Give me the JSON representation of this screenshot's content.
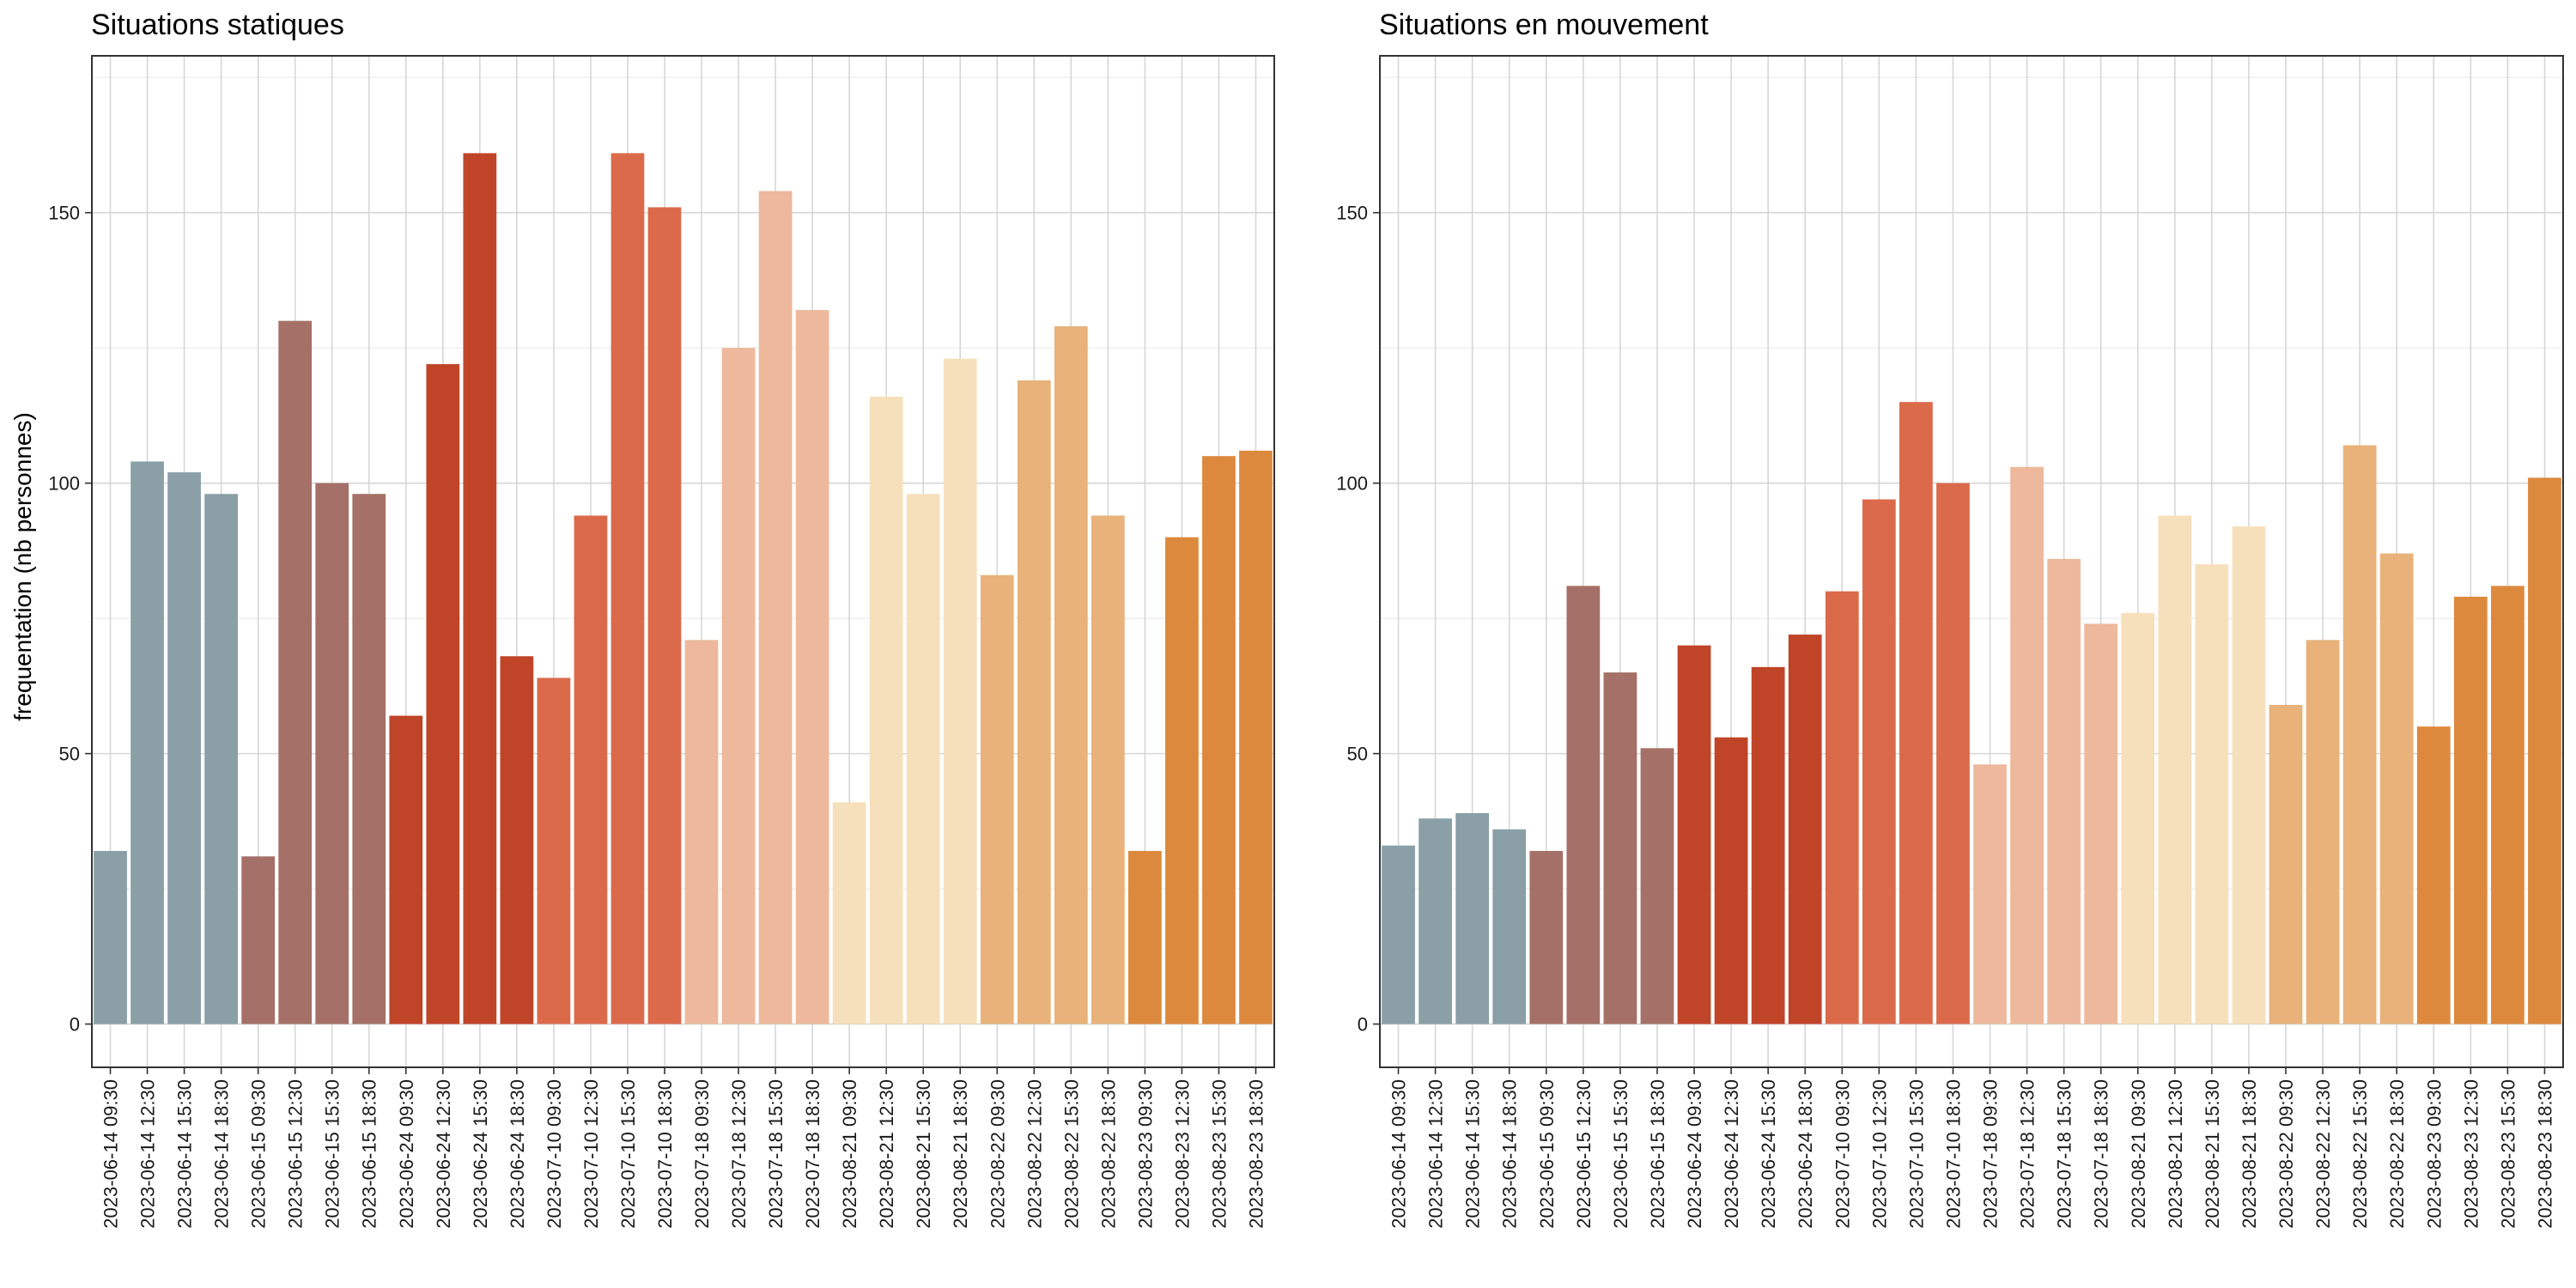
{
  "y_axis_label": "frequentation (nb personnes)",
  "chart_data": [
    {
      "type": "bar",
      "title": "Situations statiques",
      "xlabel": "",
      "ylabel": "frequentation (nb personnes)",
      "ylim": [
        -8,
        179
      ],
      "yticks": [
        0,
        50,
        100,
        150
      ],
      "grid": true,
      "legend": "none",
      "categories": [
        "2023-06-14 09:30",
        "2023-06-14 12:30",
        "2023-06-14 15:30",
        "2023-06-14 18:30",
        "2023-06-15 09:30",
        "2023-06-15 12:30",
        "2023-06-15 15:30",
        "2023-06-15 18:30",
        "2023-06-24 09:30",
        "2023-06-24 12:30",
        "2023-06-24 15:30",
        "2023-06-24 18:30",
        "2023-07-10 09:30",
        "2023-07-10 12:30",
        "2023-07-10 15:30",
        "2023-07-10 18:30",
        "2023-07-18 09:30",
        "2023-07-18 12:30",
        "2023-07-18 15:30",
        "2023-07-18 18:30",
        "2023-08-21 09:30",
        "2023-08-21 12:30",
        "2023-08-21 15:30",
        "2023-08-21 18:30",
        "2023-08-22 09:30",
        "2023-08-22 12:30",
        "2023-08-22 15:30",
        "2023-08-22 18:30",
        "2023-08-23 09:30",
        "2023-08-23 12:30",
        "2023-08-23 15:30",
        "2023-08-23 18:30"
      ],
      "values": [
        32,
        104,
        102,
        98,
        31,
        130,
        100,
        98,
        57,
        122,
        161,
        68,
        64,
        94,
        161,
        151,
        71,
        125,
        154,
        132,
        41,
        116,
        98,
        123,
        83,
        119,
        129,
        94,
        32,
        90,
        105,
        106
      ]
    },
    {
      "type": "bar",
      "title": "Situations en mouvement",
      "xlabel": "",
      "ylabel": "",
      "ylim": [
        -8,
        179
      ],
      "yticks": [
        0,
        50,
        100,
        150
      ],
      "grid": true,
      "legend": "none",
      "categories": [
        "2023-06-14 09:30",
        "2023-06-14 12:30",
        "2023-06-14 15:30",
        "2023-06-14 18:30",
        "2023-06-15 09:30",
        "2023-06-15 12:30",
        "2023-06-15 15:30",
        "2023-06-15 18:30",
        "2023-06-24 09:30",
        "2023-06-24 12:30",
        "2023-06-24 15:30",
        "2023-06-24 18:30",
        "2023-07-10 09:30",
        "2023-07-10 12:30",
        "2023-07-10 15:30",
        "2023-07-10 18:30",
        "2023-07-18 09:30",
        "2023-07-18 12:30",
        "2023-07-18 15:30",
        "2023-07-18 18:30",
        "2023-08-21 09:30",
        "2023-08-21 12:30",
        "2023-08-21 15:30",
        "2023-08-21 18:30",
        "2023-08-22 09:30",
        "2023-08-22 12:30",
        "2023-08-22 15:30",
        "2023-08-22 18:30",
        "2023-08-23 09:30",
        "2023-08-23 12:30",
        "2023-08-23 15:30",
        "2023-08-23 18:30"
      ],
      "values": [
        33,
        38,
        39,
        36,
        32,
        81,
        65,
        51,
        70,
        53,
        66,
        72,
        80,
        97,
        115,
        100,
        48,
        103,
        86,
        74,
        76,
        94,
        85,
        92,
        59,
        71,
        107,
        87,
        55,
        79,
        81,
        101
      ]
    }
  ],
  "date_colors": {
    "2023-06-14": "#8a9fa6",
    "2023-06-15": "#a57067",
    "2023-06-24": "#c04428",
    "2023-07-10": "#db6a4b",
    "2023-07-18": "#edb89b",
    "2023-08-21": "#f6e0bb",
    "2023-08-22": "#e8b27a",
    "2023-08-23": "#dd893d"
  }
}
